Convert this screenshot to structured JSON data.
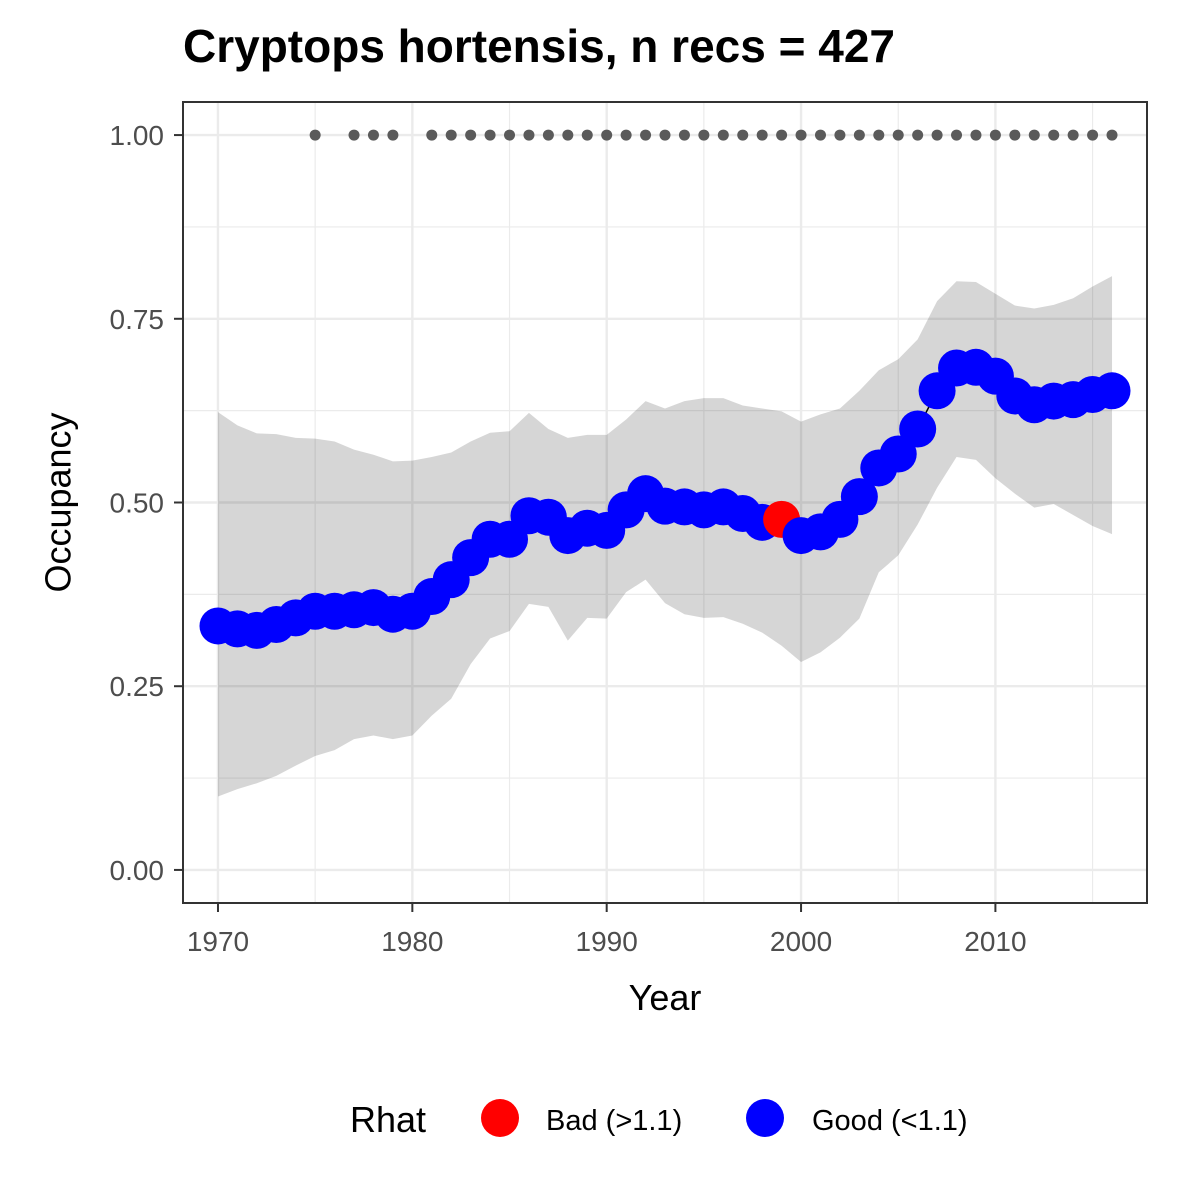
{
  "chart_data": {
    "type": "line",
    "title": "Cryptops hortensis, n recs = 427",
    "xlabel": "Year",
    "ylabel": "Occupancy",
    "xlim": [
      1968.2,
      2017.8
    ],
    "ylim": [
      -0.045,
      1.045
    ],
    "x_ticks": [
      1970,
      1980,
      1990,
      2000,
      2010
    ],
    "x_tick_labels": [
      "1970",
      "1980",
      "1990",
      "2000",
      "2010"
    ],
    "y_ticks": [
      0,
      0.25,
      0.5,
      0.75,
      1.0
    ],
    "y_tick_labels": [
      "0.00",
      "0.25",
      "0.50",
      "0.75",
      "1.00"
    ],
    "grid": true,
    "legend": {
      "title": "Rhat",
      "placement": "bottom",
      "items": [
        {
          "label": "Bad (>1.1)",
          "color": "#ff0000"
        },
        {
          "label": "Good (<1.1)",
          "color": "#0000ff"
        }
      ]
    },
    "colors": {
      "bad": "#ff0000",
      "good": "#0000ff",
      "ribbon": "#d6d6d6",
      "records": "#5a5a5a",
      "gridline": "#ebebeb",
      "frame": "#333333"
    },
    "series": [
      {
        "x": [
          1970,
          1971,
          1972,
          1973,
          1974,
          1975,
          1976,
          1977,
          1978,
          1979,
          1980,
          1981,
          1982,
          1983,
          1984,
          1985,
          1986,
          1987,
          1988,
          1989,
          1990,
          1991,
          1992,
          1993,
          1994,
          1995,
          1996,
          1997,
          1998,
          1999,
          2000,
          2001,
          2002,
          2003,
          2004,
          2005,
          2006,
          2007,
          2008,
          2009,
          2010,
          2011,
          2012,
          2013,
          2014,
          2015,
          2016
        ],
        "values": [
          0.332,
          0.328,
          0.326,
          0.334,
          0.343,
          0.352,
          0.352,
          0.354,
          0.357,
          0.348,
          0.352,
          0.372,
          0.395,
          0.425,
          0.45,
          0.45,
          0.482,
          0.48,
          0.455,
          0.465,
          0.462,
          0.49,
          0.512,
          0.495,
          0.494,
          0.49,
          0.494,
          0.485,
          0.473,
          0.477,
          0.455,
          0.46,
          0.477,
          0.508,
          0.547,
          0.566,
          0.6,
          0.652,
          0.683,
          0.684,
          0.672,
          0.645,
          0.633,
          0.638,
          0.64,
          0.647,
          0.652
        ],
        "rhat": [
          "Good",
          "Good",
          "Good",
          "Good",
          "Good",
          "Good",
          "Good",
          "Good",
          "Good",
          "Good",
          "Good",
          "Good",
          "Good",
          "Good",
          "Good",
          "Good",
          "Good",
          "Good",
          "Good",
          "Good",
          "Good",
          "Good",
          "Good",
          "Good",
          "Good",
          "Good",
          "Good",
          "Good",
          "Good",
          "Bad",
          "Good",
          "Good",
          "Good",
          "Good",
          "Good",
          "Good",
          "Good",
          "Good",
          "Good",
          "Good",
          "Good",
          "Good",
          "Good",
          "Good",
          "Good",
          "Good",
          "Good"
        ],
        "lower": [
          0.1,
          0.11,
          0.118,
          0.128,
          0.142,
          0.155,
          0.163,
          0.178,
          0.183,
          0.178,
          0.183,
          0.21,
          0.233,
          0.28,
          0.315,
          0.325,
          0.362,
          0.358,
          0.312,
          0.343,
          0.342,
          0.378,
          0.395,
          0.363,
          0.348,
          0.343,
          0.344,
          0.335,
          0.323,
          0.305,
          0.283,
          0.296,
          0.316,
          0.342,
          0.405,
          0.428,
          0.47,
          0.52,
          0.562,
          0.558,
          0.533,
          0.512,
          0.493,
          0.498,
          0.483,
          0.468,
          0.457
        ],
        "upper": [
          0.623,
          0.605,
          0.594,
          0.593,
          0.588,
          0.587,
          0.583,
          0.572,
          0.565,
          0.556,
          0.557,
          0.562,
          0.568,
          0.583,
          0.595,
          0.597,
          0.622,
          0.6,
          0.588,
          0.592,
          0.592,
          0.613,
          0.638,
          0.628,
          0.638,
          0.642,
          0.642,
          0.632,
          0.628,
          0.624,
          0.61,
          0.62,
          0.628,
          0.652,
          0.68,
          0.695,
          0.722,
          0.774,
          0.801,
          0.8,
          0.784,
          0.768,
          0.764,
          0.769,
          0.778,
          0.794,
          0.808
        ]
      }
    ],
    "records": {
      "y": 1.0,
      "years": [
        1975,
        1977,
        1978,
        1979,
        1981,
        1982,
        1983,
        1984,
        1985,
        1986,
        1987,
        1988,
        1989,
        1990,
        1991,
        1992,
        1993,
        1994,
        1995,
        1996,
        1997,
        1998,
        1999,
        2000,
        2001,
        2002,
        2003,
        2004,
        2005,
        2006,
        2007,
        2008,
        2009,
        2010,
        2011,
        2012,
        2013,
        2014,
        2015,
        2016
      ]
    }
  }
}
